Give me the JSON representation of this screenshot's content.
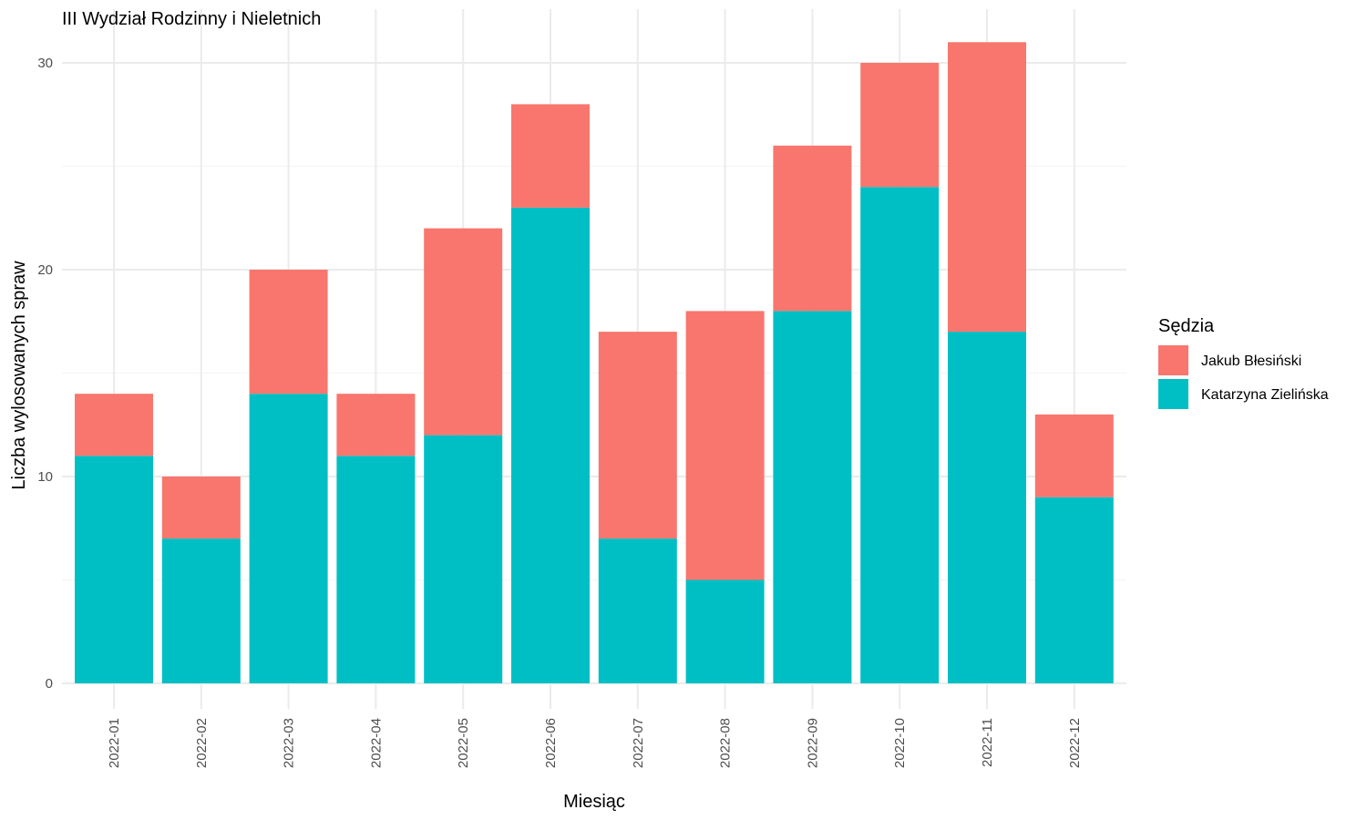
{
  "chart_data": {
    "type": "bar",
    "stacked": true,
    "title": "III Wydział Rodzinny i Nieletnich",
    "xlabel": "Miesiąc",
    "ylabel": "Liczba wylosowanych spraw",
    "categories": [
      "2022-01",
      "2022-02",
      "2022-03",
      "2022-04",
      "2022-05",
      "2022-06",
      "2022-07",
      "2022-08",
      "2022-09",
      "2022-10",
      "2022-11",
      "2022-12"
    ],
    "series": [
      {
        "name": "Katarzyna Zielińska",
        "color": "#00BFC4",
        "values": [
          11,
          7,
          14,
          11,
          12,
          23,
          7,
          5,
          18,
          24,
          17,
          9
        ]
      },
      {
        "name": "Jakub Błesiński",
        "color": "#F8766D",
        "values": [
          3,
          3,
          6,
          3,
          10,
          5,
          10,
          13,
          8,
          6,
          14,
          4
        ]
      }
    ],
    "legend": {
      "title": "Sędzia",
      "order": [
        "Jakub Błesiński",
        "Katarzyna Zielińska"
      ],
      "position": "right"
    },
    "ylim": [
      0,
      31
    ],
    "yticks": [
      0,
      10,
      20,
      30
    ],
    "grid": true
  }
}
